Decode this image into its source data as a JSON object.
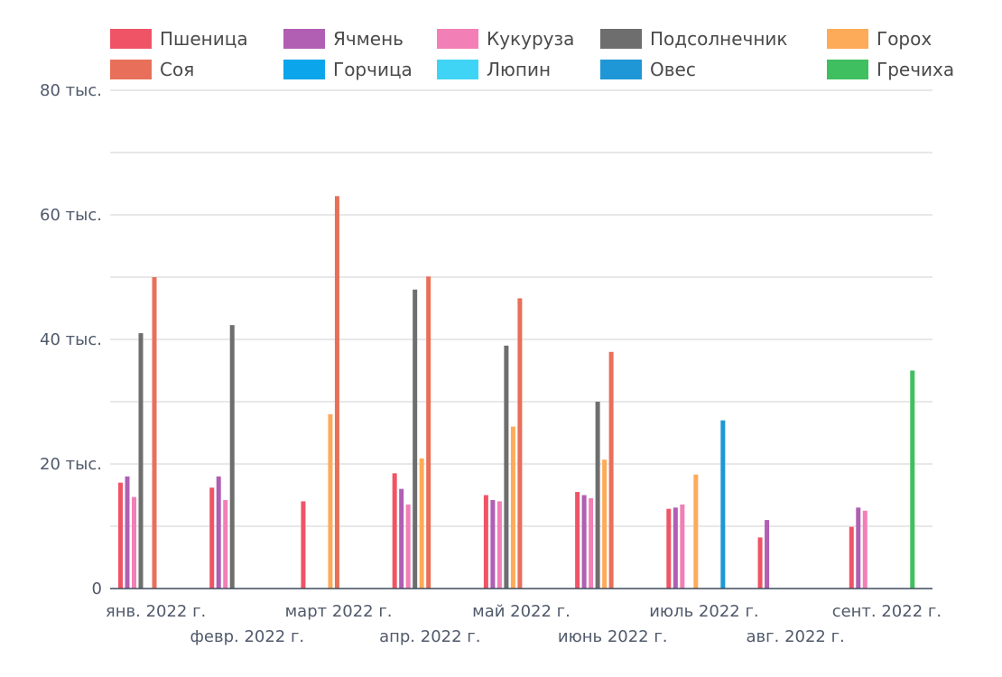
{
  "chart_data": {
    "type": "bar",
    "categories": [
      "янв. 2022 г.",
      "февр. 2022 г.",
      "март 2022 г.",
      "апр. 2022 г.",
      "май 2022 г.",
      "июнь 2022 г.",
      "июль 2022 г.",
      "авг. 2022 г.",
      "сент. 2022 г."
    ],
    "series": [
      {
        "name": "Пшеница",
        "color": "#ef5466",
        "values": [
          17000,
          16200,
          14000,
          18500,
          15000,
          15500,
          12800,
          8200,
          9900
        ]
      },
      {
        "name": "Ячмень",
        "color": "#b05fb3",
        "values": [
          18000,
          18000,
          null,
          16000,
          14200,
          15000,
          13000,
          11000,
          13000
        ]
      },
      {
        "name": "Кукуруза",
        "color": "#f27fb5",
        "values": [
          14700,
          14200,
          null,
          13500,
          14000,
          14500,
          13500,
          null,
          12500
        ]
      },
      {
        "name": "Подсолнечник",
        "color": "#6e6e6e",
        "values": [
          41000,
          42300,
          null,
          48000,
          39000,
          30000,
          null,
          null,
          null
        ]
      },
      {
        "name": "Горох",
        "color": "#fdab58",
        "values": [
          null,
          null,
          28000,
          20900,
          26000,
          20700,
          18300,
          null,
          null
        ]
      },
      {
        "name": "Соя",
        "color": "#e8705a",
        "values": [
          50000,
          null,
          63000,
          50100,
          46600,
          38000,
          null,
          null,
          null
        ]
      },
      {
        "name": "Горчица",
        "color": "#0ba5ec",
        "values": [
          null,
          null,
          null,
          null,
          null,
          null,
          null,
          null,
          null
        ]
      },
      {
        "name": "Люпин",
        "color": "#3fd4f5",
        "values": [
          null,
          null,
          null,
          null,
          null,
          null,
          null,
          null,
          null
        ]
      },
      {
        "name": "Овес",
        "color": "#1f97d6",
        "values": [
          null,
          null,
          null,
          null,
          null,
          null,
          27000,
          null,
          null
        ]
      },
      {
        "name": "Гречиха",
        "color": "#3fbf5f",
        "values": [
          null,
          null,
          null,
          null,
          null,
          null,
          null,
          null,
          35000
        ]
      }
    ],
    "ylim": [
      0,
      80000
    ],
    "yticks": [
      {
        "value": 0,
        "label": "0"
      },
      {
        "value": 20000,
        "label": "20 тыс."
      },
      {
        "value": 40000,
        "label": "40 тыс."
      },
      {
        "value": 60000,
        "label": "60 тыс."
      },
      {
        "value": 80000,
        "label": "80 тыс."
      }
    ],
    "gridlines": [
      10000,
      20000,
      30000,
      40000,
      50000,
      60000,
      70000,
      80000
    ],
    "grid": true,
    "legend_position": "top"
  }
}
